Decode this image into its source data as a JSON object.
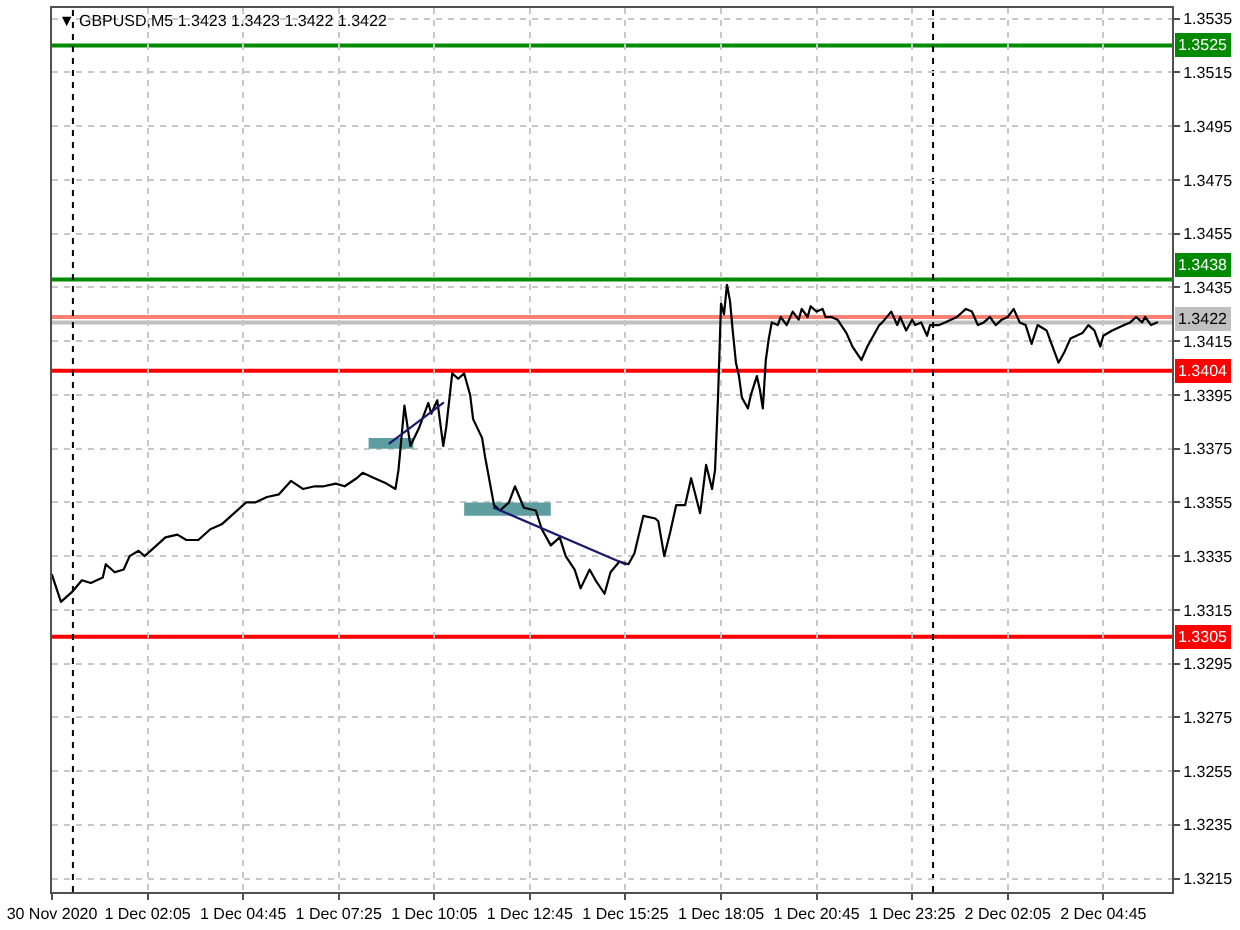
{
  "chart_data": {
    "type": "line",
    "title": "▼ GBPUSD,M5 1.3423 1.3423 1.3422 1.3422",
    "xlim": [
      "2020-11-30T23:25",
      "2020-12-02T06:40"
    ],
    "xticks": [
      {
        "value": "2020-11-30T23:25",
        "label": "30 Nov 2020"
      },
      {
        "value": "2020-12-01T02:05",
        "label": "1 Dec 02:05"
      },
      {
        "value": "2020-12-01T04:45",
        "label": "1 Dec 04:45"
      },
      {
        "value": "2020-12-01T07:25",
        "label": "1 Dec 07:25"
      },
      {
        "value": "2020-12-01T10:05",
        "label": "1 Dec 10:05"
      },
      {
        "value": "2020-12-01T12:45",
        "label": "1 Dec 12:45"
      },
      {
        "value": "2020-12-01T15:25",
        "label": "1 Dec 15:25"
      },
      {
        "value": "2020-12-01T18:05",
        "label": "1 Dec 18:05"
      },
      {
        "value": "2020-12-01T20:45",
        "label": "1 Dec 20:45"
      },
      {
        "value": "2020-12-01T23:25",
        "label": "1 Dec 23:25"
      },
      {
        "value": "2020-12-02T02:05",
        "label": "2 Dec 02:05"
      },
      {
        "value": "2020-12-02T04:45",
        "label": "2 Dec 04:45"
      }
    ],
    "ylim": [
      1.321,
      1.3539
    ],
    "yticks": [
      1.3215,
      1.3235,
      1.3255,
      1.3275,
      1.3295,
      1.3315,
      1.3335,
      1.3355,
      1.3375,
      1.3395,
      1.3415,
      1.3435,
      1.3455,
      1.3475,
      1.3495,
      1.3515,
      1.3535
    ],
    "grid": true,
    "series": [
      {
        "color": "#5f9ea0",
        "x": [
          "2020-12-01T08:15",
          "2020-12-01T09:30"
        ],
        "values": [
          null,
          null
        ],
        "lower": [
          1.3375,
          1.3375
        ],
        "upper": [
          1.3379,
          1.3379
        ]
      },
      {
        "color": "#5f9ea0",
        "x": [
          "2020-12-01T10:55",
          "2020-12-01T13:20"
        ],
        "values": [
          null,
          null
        ],
        "lower": [
          1.335,
          1.335
        ],
        "upper": [
          1.3355,
          1.3355
        ]
      },
      {
        "color": "#000000",
        "x": [
          "2020-11-30T23:25",
          "2020-11-30T23:40",
          "2020-12-01T00:00",
          "2020-12-01T00:15",
          "2020-12-01T00:30",
          "2020-12-01T00:50",
          "2020-12-01T00:55",
          "2020-12-01T01:10",
          "2020-12-01T01:25",
          "2020-12-01T01:35",
          "2020-12-01T01:50",
          "2020-12-01T02:00",
          "2020-12-01T02:15",
          "2020-12-01T02:35",
          "2020-12-01T02:55",
          "2020-12-01T03:10",
          "2020-12-01T03:30",
          "2020-12-01T03:50",
          "2020-12-01T04:10",
          "2020-12-01T04:30",
          "2020-12-01T04:50",
          "2020-12-01T05:05",
          "2020-12-01T05:25",
          "2020-12-01T05:45",
          "2020-12-01T06:05",
          "2020-12-01T06:25",
          "2020-12-01T06:45",
          "2020-12-01T07:00",
          "2020-12-01T07:20",
          "2020-12-01T07:35",
          "2020-12-01T07:55",
          "2020-12-01T08:05",
          "2020-12-01T08:25",
          "2020-12-01T08:45",
          "2020-12-01T09:00",
          "2020-12-01T09:05",
          "2020-12-01T09:15",
          "2020-12-01T09:25",
          "2020-12-01T09:40",
          "2020-12-01T09:55",
          "2020-12-01T10:00",
          "2020-12-01T10:10",
          "2020-12-01T10:20",
          "2020-12-01T10:25",
          "2020-12-01T10:35",
          "2020-12-01T10:45",
          "2020-12-01T10:55",
          "2020-12-01T11:05",
          "2020-12-01T11:10",
          "2020-12-01T11:25",
          "2020-12-01T11:30",
          "2020-12-01T11:45",
          "2020-12-01T11:55",
          "2020-12-01T12:10",
          "2020-12-01T12:20",
          "2020-12-01T12:35",
          "2020-12-01T12:55",
          "2020-12-01T13:05",
          "2020-12-01T13:20",
          "2020-12-01T13:35",
          "2020-12-01T13:45",
          "2020-12-01T14:00",
          "2020-12-01T14:10",
          "2020-12-01T14:25",
          "2020-12-01T14:35",
          "2020-12-01T14:50",
          "2020-12-01T15:00",
          "2020-12-01T15:15",
          "2020-12-01T15:30",
          "2020-12-01T15:40",
          "2020-12-01T15:55",
          "2020-12-01T16:15",
          "2020-12-01T16:20",
          "2020-12-01T16:30",
          "2020-12-01T16:40",
          "2020-12-01T16:50",
          "2020-12-01T17:05",
          "2020-12-01T17:15",
          "2020-12-01T17:30",
          "2020-12-01T17:40",
          "2020-12-01T17:50",
          "2020-12-01T17:55",
          "2020-12-01T18:00",
          "2020-12-01T18:05",
          "2020-12-01T18:10",
          "2020-12-01T18:15",
          "2020-12-01T18:20",
          "2020-12-01T18:25",
          "2020-12-01T18:30",
          "2020-12-01T18:35",
          "2020-12-01T18:40",
          "2020-12-01T18:45",
          "2020-12-01T18:50",
          "2020-12-01T18:55",
          "2020-12-01T19:05",
          "2020-12-01T19:10",
          "2020-12-01T19:15",
          "2020-12-01T19:20",
          "2020-12-01T19:25",
          "2020-12-01T19:30",
          "2020-12-01T19:40",
          "2020-12-01T19:45",
          "2020-12-01T19:55",
          "2020-12-01T20:05",
          "2020-12-01T20:15",
          "2020-12-01T20:20",
          "2020-12-01T20:30",
          "2020-12-01T20:35",
          "2020-12-01T20:45",
          "2020-12-01T20:55",
          "2020-12-01T21:00",
          "2020-12-01T21:10",
          "2020-12-01T21:20",
          "2020-12-01T21:35",
          "2020-12-01T21:45",
          "2020-12-01T22:00",
          "2020-12-01T22:10",
          "2020-12-01T22:20",
          "2020-12-01T22:30",
          "2020-12-01T22:35",
          "2020-12-01T22:50",
          "2020-12-01T23:00",
          "2020-12-01T23:05",
          "2020-12-01T23:15",
          "2020-12-01T23:25",
          "2020-12-01T23:30",
          "2020-12-01T23:40",
          "2020-12-01T23:50",
          "2020-12-01T23:55",
          "2020-12-02T00:10",
          "2020-12-02T00:20",
          "2020-12-02T00:30",
          "2020-12-02T00:40",
          "2020-12-02T00:55",
          "2020-12-02T01:05",
          "2020-12-02T01:15",
          "2020-12-02T01:25",
          "2020-12-02T01:35",
          "2020-12-02T01:45",
          "2020-12-02T01:55",
          "2020-12-02T02:05",
          "2020-12-02T02:15",
          "2020-12-02T02:25",
          "2020-12-02T02:35",
          "2020-12-02T02:45",
          "2020-12-02T02:55",
          "2020-12-02T03:10",
          "2020-12-02T03:20",
          "2020-12-02T03:30",
          "2020-12-02T03:40",
          "2020-12-02T03:50",
          "2020-12-02T04:10",
          "2020-12-02T04:20",
          "2020-12-02T04:30",
          "2020-12-02T04:40",
          "2020-12-02T04:45",
          "2020-12-02T05:00",
          "2020-12-02T05:20",
          "2020-12-02T05:30",
          "2020-12-02T05:40",
          "2020-12-02T05:50",
          "2020-12-02T05:55",
          "2020-12-02T06:05",
          "2020-12-02T06:15"
        ],
        "values": [
          1.3328,
          1.3318,
          1.3322,
          1.3326,
          1.3325,
          1.3327,
          1.3332,
          1.3329,
          1.333,
          1.3335,
          1.3337,
          1.3335,
          1.3338,
          1.3342,
          1.3343,
          1.3341,
          1.3341,
          1.3345,
          1.3347,
          1.3351,
          1.3355,
          1.3355,
          1.3357,
          1.3358,
          1.3363,
          1.336,
          1.3361,
          1.3361,
          1.3362,
          1.3361,
          1.3364,
          1.3366,
          1.3364,
          1.3362,
          1.336,
          1.3367,
          1.3391,
          1.3376,
          1.3383,
          1.3392,
          1.3388,
          1.3393,
          1.3376,
          1.3383,
          1.3403,
          1.3401,
          1.3403,
          1.3395,
          1.3386,
          1.3379,
          1.3372,
          1.3354,
          1.3352,
          1.3355,
          1.3361,
          1.3353,
          1.3352,
          1.3345,
          1.3339,
          1.3342,
          1.3335,
          1.333,
          1.3323,
          1.333,
          1.3326,
          1.3321,
          1.3329,
          1.3333,
          1.3332,
          1.3336,
          1.335,
          1.3349,
          1.3348,
          1.3335,
          1.3344,
          1.3354,
          1.3354,
          1.3364,
          1.3351,
          1.3369,
          1.336,
          1.3367,
          1.3394,
          1.3429,
          1.3425,
          1.3436,
          1.343,
          1.3418,
          1.3407,
          1.3402,
          1.3394,
          1.3392,
          1.339,
          1.3395,
          1.3402,
          1.3397,
          1.339,
          1.3408,
          1.3416,
          1.3422,
          1.3421,
          1.3424,
          1.3421,
          1.3426,
          1.3423,
          1.3427,
          1.3424,
          1.3428,
          1.3426,
          1.3427,
          1.3424,
          1.3424,
          1.3423,
          1.3418,
          1.3413,
          1.3408,
          1.3413,
          1.3417,
          1.3421,
          1.3422,
          1.3426,
          1.3421,
          1.3424,
          1.3419,
          1.3423,
          1.3421,
          1.3422,
          1.3417,
          1.3421,
          1.3421,
          1.3422,
          1.3423,
          1.3424,
          1.3427,
          1.3426,
          1.3421,
          1.3422,
          1.3424,
          1.3421,
          1.3423,
          1.3424,
          1.3427,
          1.3422,
          1.3421,
          1.3414,
          1.3421,
          1.3419,
          1.3413,
          1.3407,
          1.3411,
          1.3416,
          1.3418,
          1.3421,
          1.3419,
          1.3413,
          1.3417,
          1.3419,
          1.3421,
          1.3422,
          1.3424,
          1.3422,
          1.3424,
          1.3421,
          1.3422
        ]
      },
      {
        "color": "#191970",
        "x": [
          "2020-12-01T08:50",
          "2020-12-01T10:20"
        ],
        "values": [
          1.3377,
          1.3392
        ]
      },
      {
        "color": "#191970",
        "x": [
          "2020-12-01T11:45",
          "2020-12-01T15:25"
        ],
        "values": [
          1.3353,
          1.3332
        ]
      }
    ],
    "ref_lines": [
      {
        "axis": "y",
        "value": 1.3525,
        "label": "1.3525",
        "color": "#008a00"
      },
      {
        "axis": "y",
        "value": 1.3438,
        "label": "1.3438",
        "color": "#008a00"
      },
      {
        "axis": "y",
        "value": 1.3424,
        "color": "#fa8072"
      },
      {
        "axis": "y",
        "value": 1.3422,
        "label": "1.3422",
        "color": "#c0c0c0"
      },
      {
        "axis": "y",
        "value": 1.3404,
        "label": "1.3404",
        "color": "#ff0000"
      },
      {
        "axis": "y",
        "value": 1.3305,
        "label": "1.3305",
        "color": "#ff0000"
      },
      {
        "axis": "x",
        "value": "2020-12-01T00:00",
        "color": "#000000",
        "line_style": "dotted"
      },
      {
        "axis": "x",
        "value": "2020-12-02T00:00",
        "color": "#000000",
        "line_style": "dotted"
      }
    ]
  }
}
